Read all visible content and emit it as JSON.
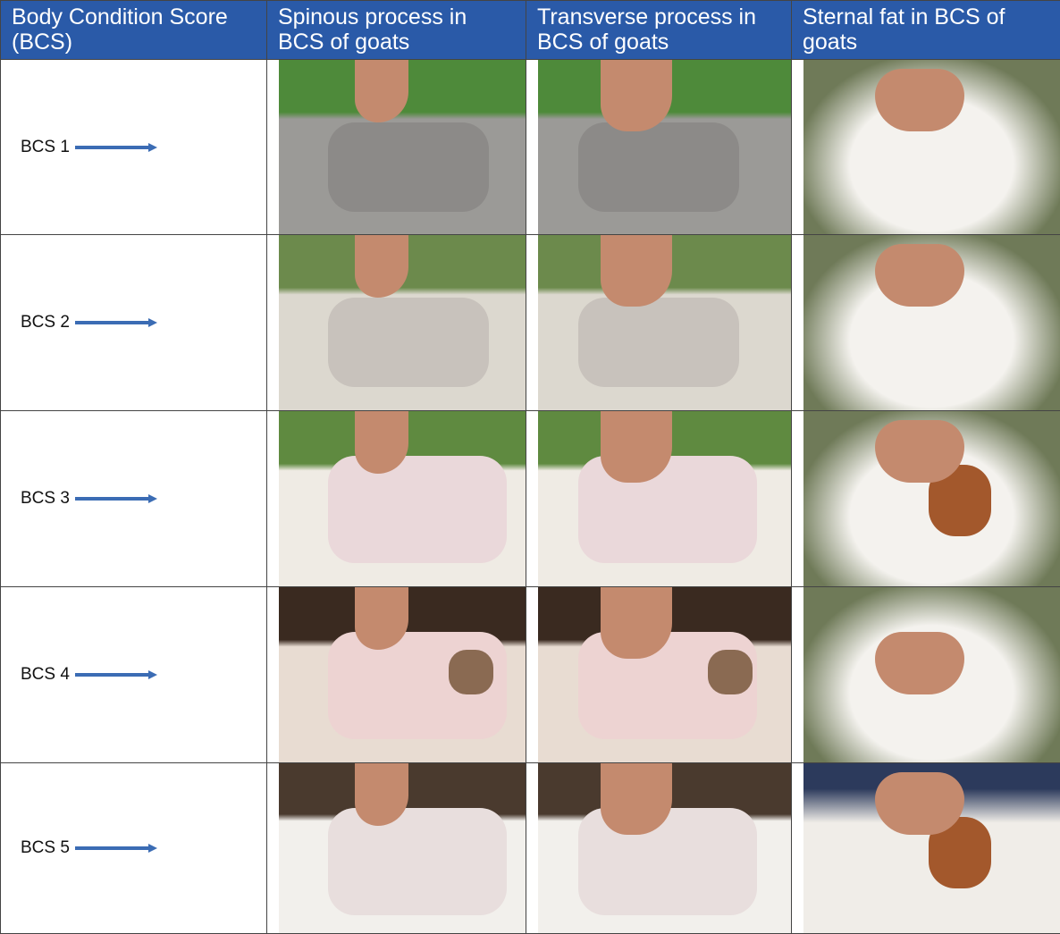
{
  "header": {
    "columns": [
      "Body Condition Score (BCS)",
      "Spinous process in BCS of goats",
      "Transverse process in BCS of goats",
      "Sternal fat in BCS of goats"
    ]
  },
  "rows": [
    {
      "label": "BCS 1"
    },
    {
      "label": "BCS 2"
    },
    {
      "label": "BCS 3"
    },
    {
      "label": "BCS 4"
    },
    {
      "label": "BCS 5"
    }
  ]
}
